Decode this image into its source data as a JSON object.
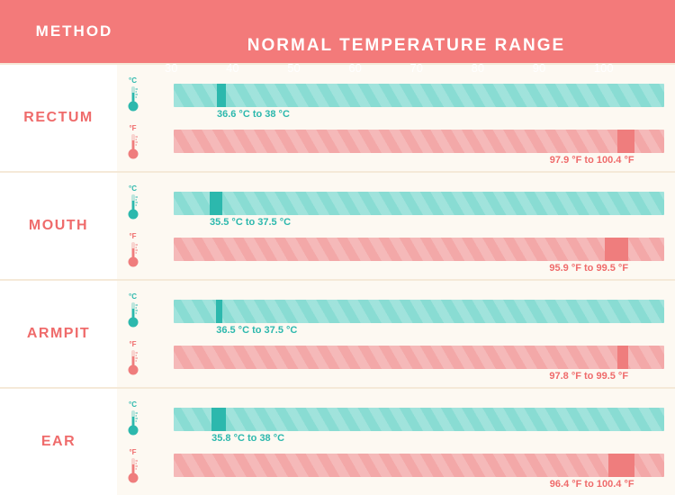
{
  "header": {
    "method_label": "METHOD",
    "range_label": "NORMAL TEMPERATURE RANGE",
    "bg_color": "#f37a7a",
    "text_color": "#ffffff"
  },
  "axis": {
    "min": 30,
    "max": 105,
    "ticks": [
      30,
      40,
      50,
      60,
      70,
      80,
      90,
      100
    ]
  },
  "colors": {
    "celsius_bar": "#89dcd3",
    "celsius_marker": "#2cb8ad",
    "celsius_text": "#2cb8ad",
    "fahrenheit_bar": "#f3a8a8",
    "fahrenheit_marker": "#ef7d7d",
    "fahrenheit_text": "#ef6b6b",
    "row_label_text": "#ef6b6b",
    "divider": "#f5e9d8",
    "page_bg": "#fdf9f2",
    "white": "#ffffff"
  },
  "rows": [
    {
      "label": "RECTUM",
      "c": {
        "lo": 36.6,
        "hi": 38.0,
        "text": "36.6 °C to 38 °C"
      },
      "f": {
        "lo": 97.9,
        "hi": 100.4,
        "text": "97.9 °F to 100.4 °F"
      }
    },
    {
      "label": "MOUTH",
      "c": {
        "lo": 35.5,
        "hi": 37.5,
        "text": "35.5 °C to 37.5 °C"
      },
      "f": {
        "lo": 95.9,
        "hi": 99.5,
        "text": "95.9 °F to 99.5 °F"
      }
    },
    {
      "label": "ARMPIT",
      "c": {
        "lo": 36.5,
        "hi": 37.5,
        "text": "36.5 °C to 37.5 °C"
      },
      "f": {
        "lo": 97.8,
        "hi": 99.5,
        "text": "97.8 °F to 99.5 °F"
      }
    },
    {
      "label": "EAR",
      "c": {
        "lo": 35.8,
        "hi": 38.0,
        "text": "35.8 °C to 38 °C"
      },
      "f": {
        "lo": 96.4,
        "hi": 100.4,
        "text": "96.4 °F to 100.4 °F"
      }
    }
  ],
  "units": {
    "c": "°C",
    "f": "°F"
  }
}
